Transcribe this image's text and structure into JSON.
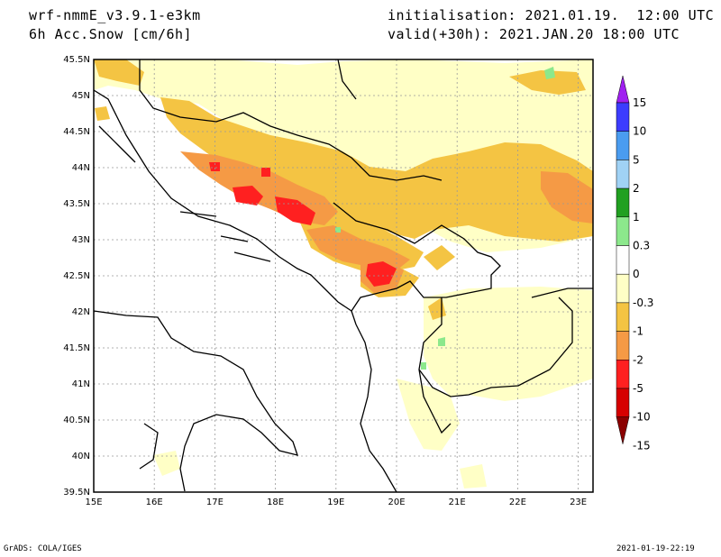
{
  "header": {
    "model": "wrf-nmmE_v3.9.1-e3km",
    "variable": "6h Acc.Snow [cm/6h]",
    "init": "initialisation: 2021.01.19.  12:00 UTC",
    "valid": "valid(+30h): 2021.JAN.20 18:00 UTC"
  },
  "map": {
    "lat_labels": [
      "45.5N",
      "45N",
      "44.5N",
      "44N",
      "43.5N",
      "43N",
      "42.5N",
      "42N",
      "41.5N",
      "41N",
      "40.5N",
      "40N",
      "39.5N"
    ],
    "lon_labels": [
      "15E",
      "16E",
      "17E",
      "18E",
      "19E",
      "20E",
      "21E",
      "22E",
      "23E"
    ]
  },
  "colorbar": {
    "labels": [
      "15",
      "10",
      "5",
      "2",
      "1",
      "0.3",
      "0",
      "-0.3",
      "-1",
      "-2",
      "-5",
      "-10",
      "-15"
    ],
    "colors": [
      "#a020f0",
      "#3c3cff",
      "#4a9cf0",
      "#a0d2f5",
      "#21a021",
      "#8ce88c",
      "#ffffff",
      "#ffffc6",
      "#f4c443",
      "#f59a45",
      "#ff2020",
      "#d60000",
      "#8b0000"
    ]
  },
  "footer": {
    "left": "GrADS: COLA/IGES",
    "right": "2021-01-19-22:19"
  }
}
